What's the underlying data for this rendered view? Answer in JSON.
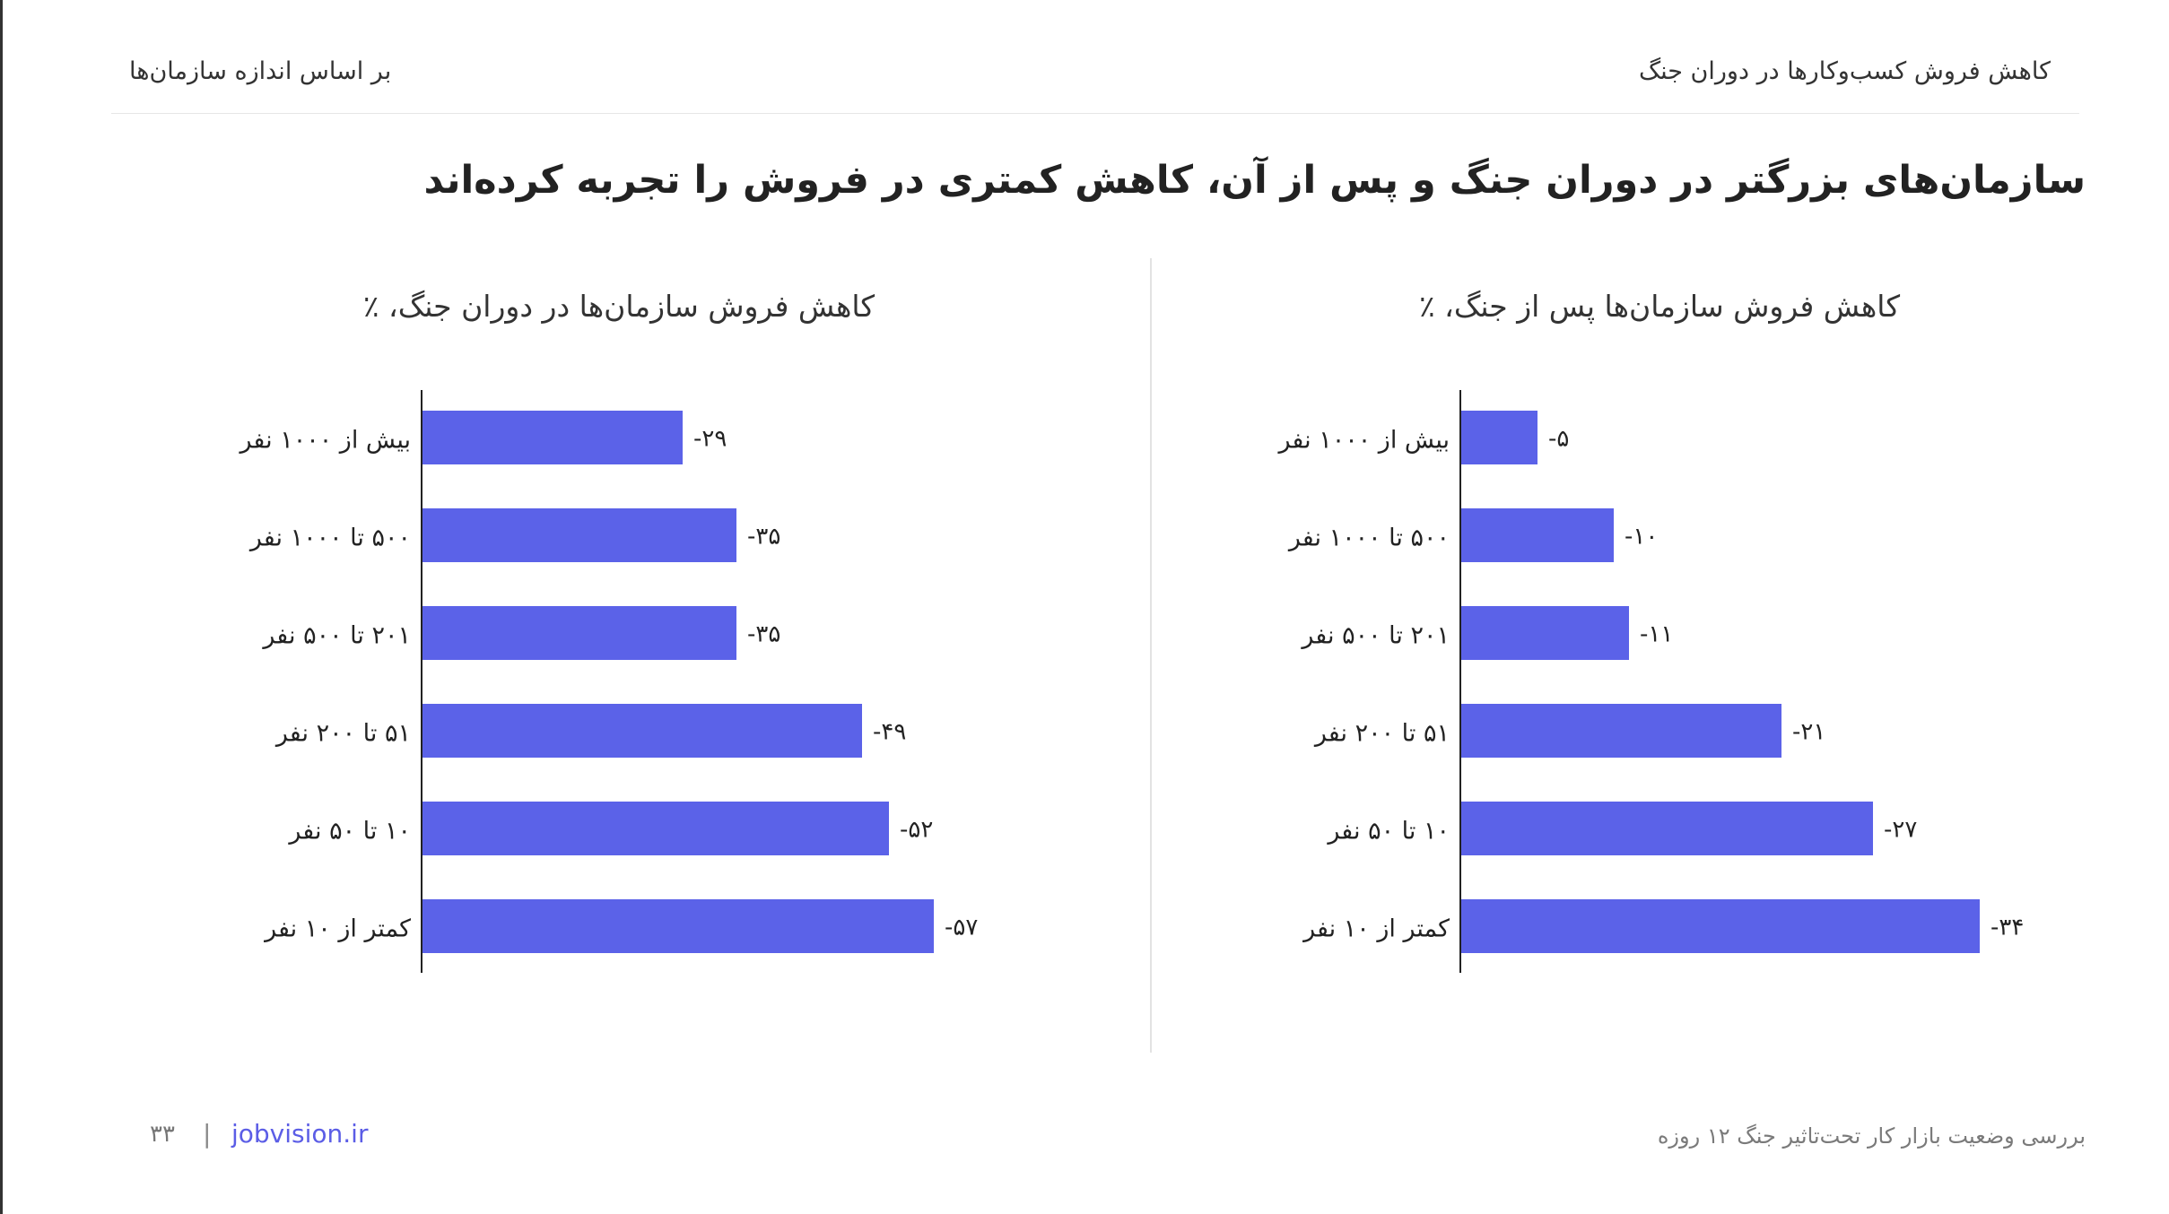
{
  "header": {
    "report_title": "کاهش فروش کسب‌وکارها در دوران جنگ",
    "section_title": "بر اساس اندازه سازمان‌ها"
  },
  "headline": "سازمان‌های بزرگتر در دوران جنگ و پس از آن، کاهش کمتری در فروش را تجربه کرده‌اند",
  "footer": {
    "source": "بررسی وضعیت بازار کار تحت‌تاثیر جنگ ۱۲ روزه",
    "link": "jobvision.ir",
    "separator": "|",
    "page": "۳۳"
  },
  "colors": {
    "bar": "#5b62e8",
    "axis": "#222222",
    "divider": "#e2e2e2"
  },
  "chart_data": [
    {
      "type": "bar",
      "orientation": "horizontal",
      "title": "کاهش فروش سازمان‌ها پس از جنگ، ٪",
      "categories": [
        "بیش از ۱۰۰۰ نفر",
        "۵۰۰ تا ۱۰۰۰ نفر",
        "۲۰۱ تا ۵۰۰ نفر",
        "۵۱ تا ۲۰۰ نفر",
        "۱۰ تا ۵۰ نفر",
        "کمتر از ۱۰ نفر"
      ],
      "values": [
        -5,
        -10,
        -11,
        -21,
        -27,
        -34
      ],
      "data_labels": [
        "-۵",
        "-۱۰",
        "-۱۱",
        "-۲۱",
        "-۲۷",
        "-۳۴"
      ]
    },
    {
      "type": "bar",
      "orientation": "horizontal",
      "title": "کاهش فروش سازمان‌ها در دوران جنگ، ٪",
      "categories": [
        "بیش از ۱۰۰۰ نفر",
        "۵۰۰ تا ۱۰۰۰ نفر",
        "۲۰۱ تا ۵۰۰ نفر",
        "۵۱ تا ۲۰۰ نفر",
        "۱۰ تا ۵۰ نفر",
        "کمتر از ۱۰ نفر"
      ],
      "values": [
        -29,
        -35,
        -35,
        -49,
        -52,
        -57
      ],
      "data_labels": [
        "-۲۹",
        "-۳۵",
        "-۳۵",
        "-۴۹",
        "-۵۲",
        "-۵۷"
      ]
    }
  ]
}
